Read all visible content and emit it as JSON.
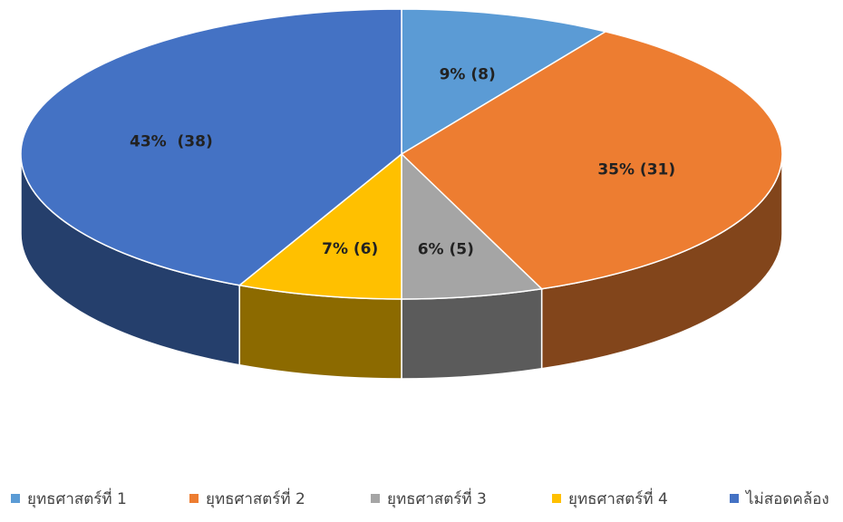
{
  "chart_data": {
    "type": "pie",
    "categories": [
      "ยุทธศาสตร์ที่ 1",
      "ยุทธศาสตร์ที่ 2",
      "ยุทธศาสตร์ที่ 3",
      "ยุทธศาสตร์ที่ 4",
      "ไม่สอดคล้อง"
    ],
    "values": [
      9,
      35,
      6,
      7,
      43
    ],
    "value_labels": [
      "9% (8)",
      "35% (31)",
      "6% (5)",
      "7% (6)",
      "43%  (38)"
    ],
    "colors": [
      "#5b9bd5",
      "#ed7d31",
      "#a5a5a5",
      "#ffc000",
      "#4472c4"
    ],
    "legend": "bottom"
  }
}
